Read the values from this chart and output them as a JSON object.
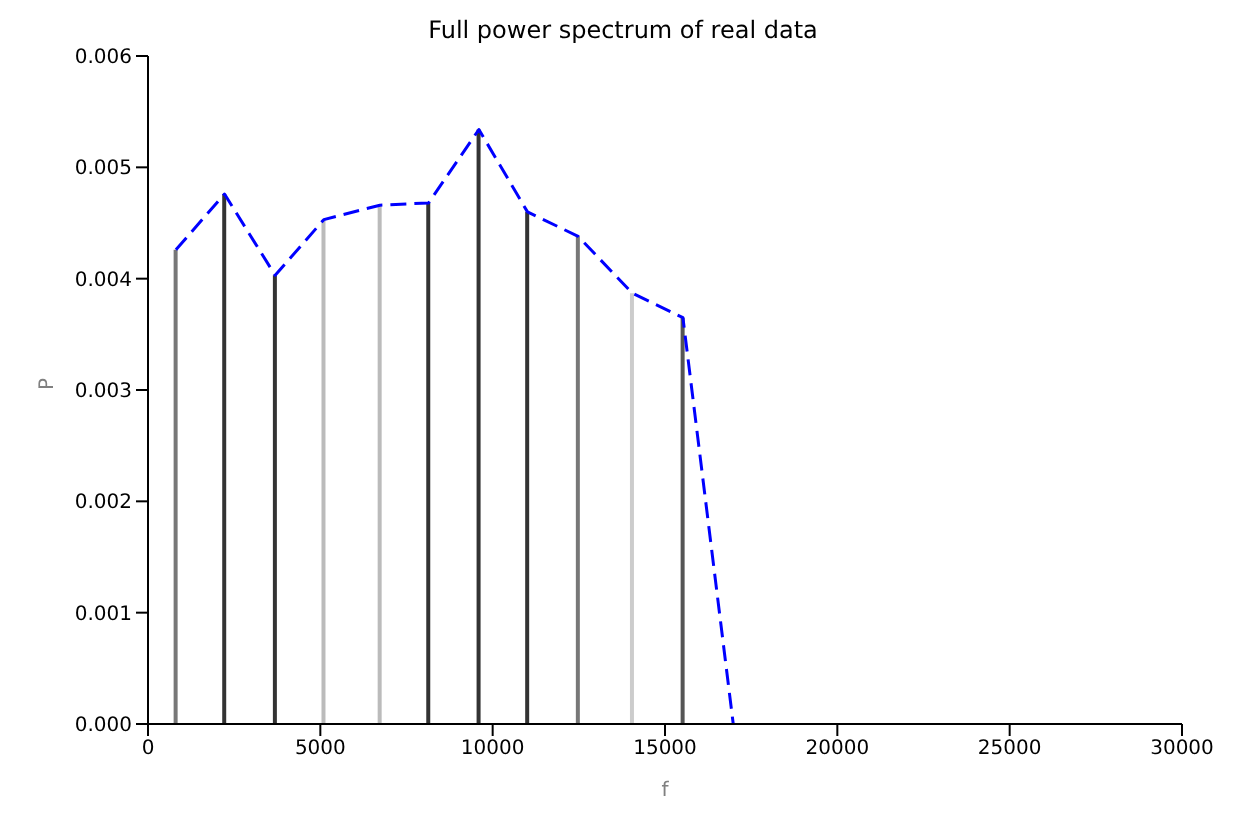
{
  "chart_data": {
    "type": "line",
    "title": "Full power spectrum of real data",
    "xlabel": "f",
    "ylabel": "P",
    "xlim": [
      0,
      30000
    ],
    "xticks": [
      0,
      5000,
      10000,
      15000,
      20000,
      25000,
      30000
    ],
    "ylim": [
      0,
      0.006
    ],
    "yticks": [
      {
        "value": 0,
        "label": "0.000"
      },
      0.001,
      0.002,
      0.003,
      0.004,
      0.005,
      0.006
    ],
    "grid": false,
    "legend": false,
    "marker": "none",
    "series": [
      {
        "type": "bar",
        "x": [
          810,
          2220,
          3690,
          5100,
          6730,
          8140,
          9600,
          11010,
          12480,
          14050,
          15520
        ],
        "values": [
          0.00426,
          0.00476,
          0.00403,
          0.00453,
          0.00466,
          0.00468,
          0.00534,
          0.0046,
          0.00438,
          0.00387,
          0.00365
        ],
        "colors": [
          "#777777",
          "#333333",
          "#333333",
          "#bbbbbb",
          "#bbbbbb",
          "#333333",
          "#333333",
          "#333333",
          "#777777",
          "#cccccc",
          "#555555"
        ]
      },
      {
        "color": "#0000ff",
        "line_style": "dashed",
        "x": [
          810,
          2220,
          3690,
          5100,
          6730,
          8140,
          9600,
          11010,
          12480,
          14050,
          15520,
          16980
        ],
        "values": [
          0.00426,
          0.00476,
          0.00403,
          0.00453,
          0.00466,
          0.00468,
          0.00534,
          0.0046,
          0.00438,
          0.00387,
          0.00365,
          0
        ]
      }
    ]
  }
}
